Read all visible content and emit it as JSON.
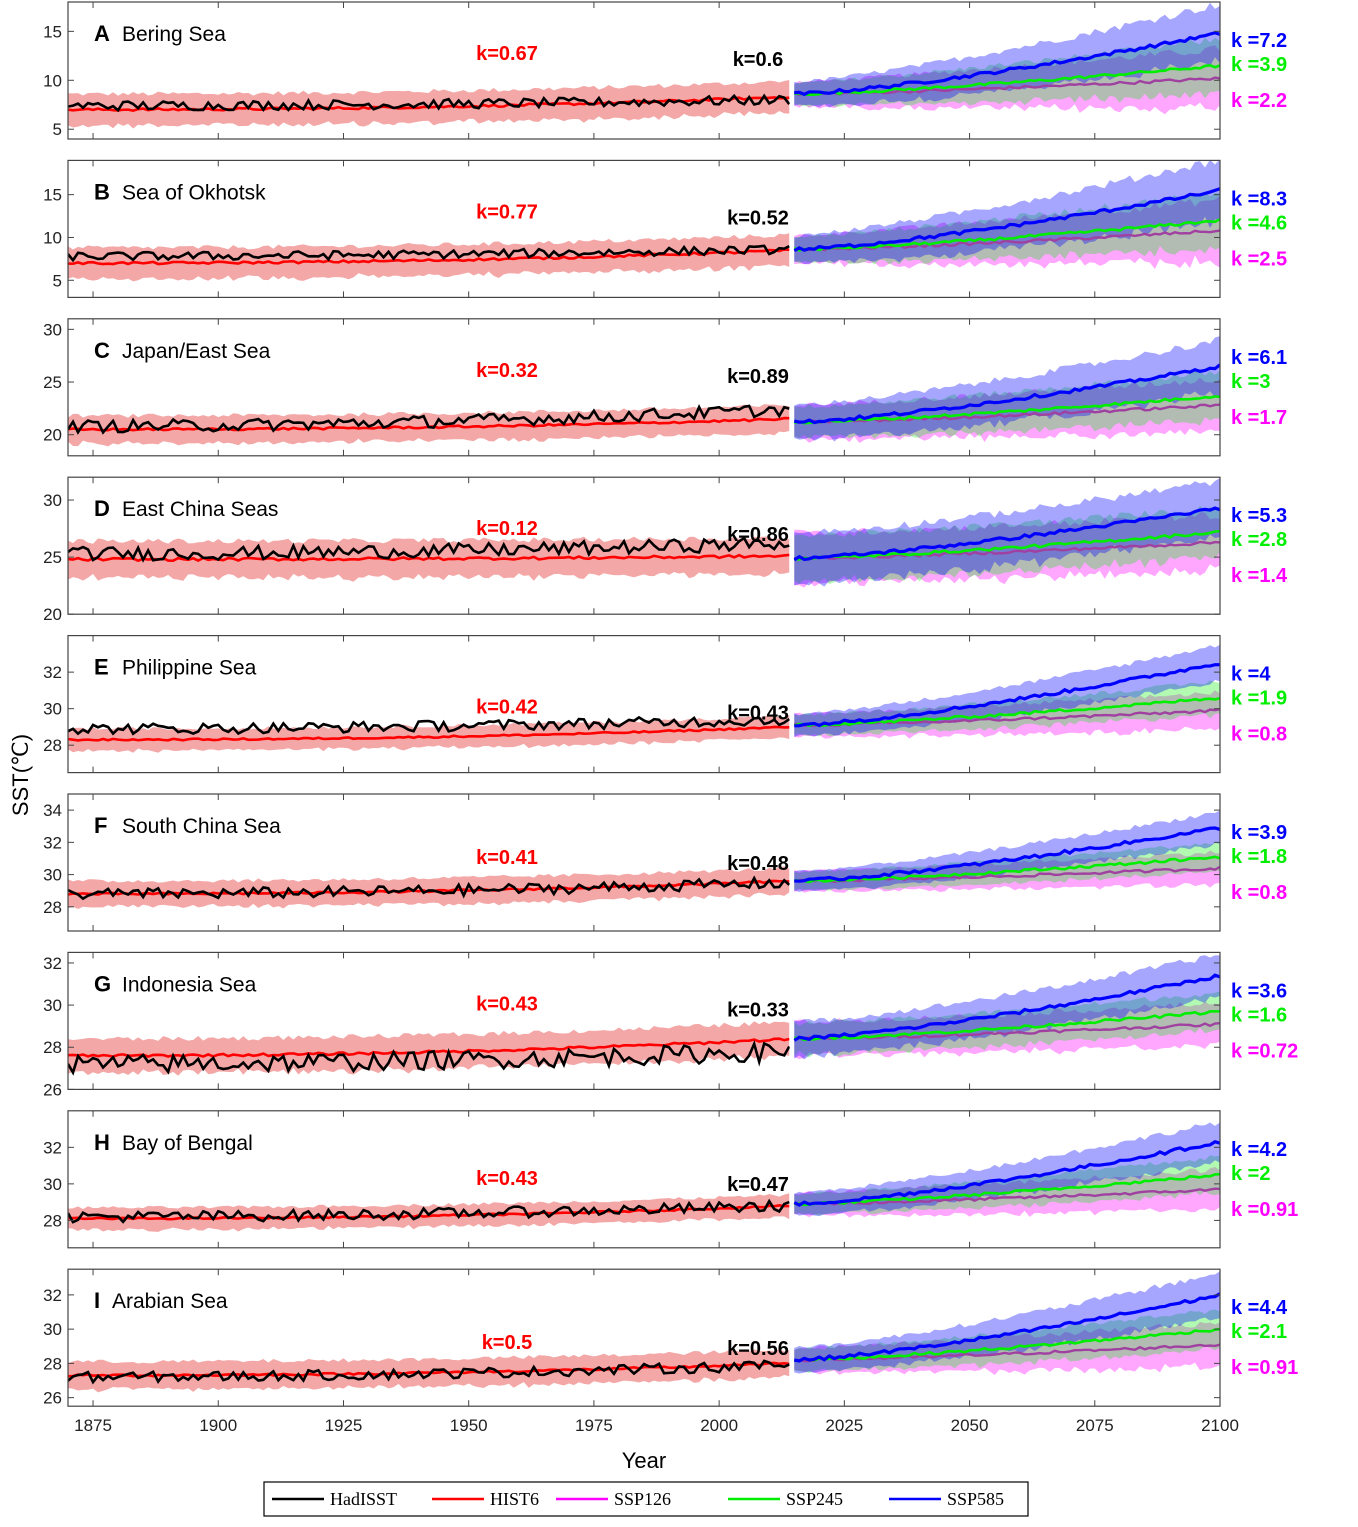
{
  "figure": {
    "ylabel": "SST(℃)",
    "xlabel": "Year",
    "legend": [
      {
        "name": "HadISST",
        "color": "#000000"
      },
      {
        "name": "HIST6",
        "color": "#ff0000"
      },
      {
        "name": "SSP126",
        "color": "#ff00ff"
      },
      {
        "name": "SSP245",
        "color": "#00ee00"
      },
      {
        "name": "SSP585",
        "color": "#0000ff"
      }
    ],
    "colors": {
      "hadisst": "#000000",
      "hist6": "#ff0000",
      "hist6_band": "#f4a7a7",
      "ssp126": "#ff00ff",
      "ssp126_mean": "#a040a0",
      "ssp245": "#00ee00",
      "ssp585": "#0000ff",
      "ssp585_band": "#8f8fee"
    }
  },
  "chart_data": [
    {
      "type": "line",
      "letter": "A",
      "name": "Bering Sea",
      "xlim": [
        1870,
        2100
      ],
      "ylim": [
        4,
        18
      ],
      "yticks": [
        5,
        10,
        15
      ],
      "xticks": [
        1875,
        1900,
        1925,
        1950,
        1975,
        2000,
        2025,
        2050,
        2075,
        2100
      ],
      "k_hist": "k=0.67",
      "k_obs": "k=0.6",
      "k_ssp585": "k =7.2",
      "k_ssp245": "k =3.9",
      "k_ssp126": "k =2.2",
      "hist_start": 7.0,
      "hist_end": 8.3,
      "hist_spread": 1.6,
      "obs_start": 7.4,
      "obs_end": 8.0,
      "obs_noise": 0.5,
      "ssp_start": 8.6,
      "ssp585_end": 14.8,
      "ssp245_end": 11.5,
      "ssp126_end": 10.2,
      "ssp_spread_start": 1.2,
      "ssp_spread_end": 3.0
    },
    {
      "type": "line",
      "letter": "B",
      "name": "Sea of Okhotsk",
      "xlim": [
        1870,
        2100
      ],
      "ylim": [
        3,
        19
      ],
      "yticks": [
        5,
        10,
        15
      ],
      "xticks": [
        1875,
        1900,
        1925,
        1950,
        1975,
        2000,
        2025,
        2050,
        2075,
        2100
      ],
      "k_hist": "k=0.77",
      "k_obs": "k=0.52",
      "k_ssp585": "k =8.3",
      "k_ssp245": "k =4.6",
      "k_ssp126": "k =2.5",
      "hist_start": 7.0,
      "hist_end": 8.5,
      "hist_spread": 1.8,
      "obs_start": 7.8,
      "obs_end": 8.6,
      "obs_noise": 0.5,
      "ssp_start": 8.6,
      "ssp585_end": 15.5,
      "ssp245_end": 12.0,
      "ssp126_end": 10.8,
      "ssp_spread_start": 1.6,
      "ssp_spread_end": 3.6
    },
    {
      "type": "line",
      "letter": "C",
      "name": "Japan/East Sea",
      "xlim": [
        1870,
        2100
      ],
      "ylim": [
        18,
        31
      ],
      "yticks": [
        20,
        25,
        30
      ],
      "xticks": [
        1875,
        1900,
        1925,
        1950,
        1975,
        2000,
        2025,
        2050,
        2075,
        2100
      ],
      "k_hist": "k=0.32",
      "k_obs": "k=0.89",
      "k_ssp585": "k =6.1",
      "k_ssp245": "k =3",
      "k_ssp126": "k =1.7",
      "hist_start": 20.5,
      "hist_end": 21.5,
      "hist_spread": 1.3,
      "obs_start": 20.8,
      "obs_end": 22.4,
      "obs_noise": 0.6,
      "ssp_start": 21.2,
      "ssp585_end": 26.5,
      "ssp245_end": 23.7,
      "ssp126_end": 22.8,
      "ssp_spread_start": 1.6,
      "ssp_spread_end": 2.5
    },
    {
      "type": "line",
      "letter": "D",
      "name": "East China Seas",
      "xlim": [
        1870,
        2100
      ],
      "ylim": [
        20,
        32
      ],
      "yticks": [
        20,
        25,
        30
      ],
      "xticks": [
        1875,
        1900,
        1925,
        1950,
        1975,
        2000,
        2025,
        2050,
        2075,
        2100
      ],
      "k_hist": "k=0.12",
      "k_obs": "k=0.86",
      "k_ssp585": "k =5.3",
      "k_ssp245": "k =2.8",
      "k_ssp126": "k =1.4",
      "hist_start": 24.8,
      "hist_end": 25.1,
      "hist_spread": 1.6,
      "obs_start": 25.3,
      "obs_end": 26.2,
      "obs_noise": 0.6,
      "ssp_start": 24.9,
      "ssp585_end": 29.3,
      "ssp245_end": 27.2,
      "ssp126_end": 26.3,
      "ssp_spread_start": 2.2,
      "ssp_spread_end": 2.4
    },
    {
      "type": "line",
      "letter": "E",
      "name": "Philippine Sea",
      "xlim": [
        1870,
        2100
      ],
      "ylim": [
        26.5,
        34
      ],
      "yticks": [
        28,
        30,
        32
      ],
      "xticks": [
        1875,
        1900,
        1925,
        1950,
        1975,
        2000,
        2025,
        2050,
        2075,
        2100
      ],
      "k_hist": "k=0.42",
      "k_obs": "k=0.43",
      "k_ssp585": "k =4",
      "k_ssp245": "k =1.9",
      "k_ssp126": "k =0.8",
      "hist_start": 28.3,
      "hist_end": 29.0,
      "hist_spread": 0.6,
      "obs_start": 28.9,
      "obs_end": 29.4,
      "obs_noise": 0.3,
      "ssp_start": 29.1,
      "ssp585_end": 32.5,
      "ssp245_end": 30.6,
      "ssp126_end": 29.9,
      "ssp_spread_start": 0.6,
      "ssp_spread_end": 1.0
    },
    {
      "type": "line",
      "letter": "F",
      "name": "South China Sea",
      "xlim": [
        1870,
        2100
      ],
      "ylim": [
        26.5,
        35
      ],
      "yticks": [
        28,
        30,
        32,
        34
      ],
      "xticks": [
        1875,
        1900,
        1925,
        1950,
        1975,
        2000,
        2025,
        2050,
        2075,
        2100
      ],
      "k_hist": "k=0.41",
      "k_obs": "k=0.48",
      "k_ssp585": "k =3.9",
      "k_ssp245": "k =1.8",
      "k_ssp126": "k =0.8",
      "hist_start": 28.8,
      "hist_end": 29.6,
      "hist_spread": 0.8,
      "obs_start": 28.8,
      "obs_end": 29.5,
      "obs_noise": 0.35,
      "ssp_start": 29.6,
      "ssp585_end": 32.9,
      "ssp245_end": 31.1,
      "ssp126_end": 30.4,
      "ssp_spread_start": 0.6,
      "ssp_spread_end": 1.0
    },
    {
      "type": "line",
      "letter": "G",
      "name": "Indonesia Sea",
      "xlim": [
        1870,
        2100
      ],
      "ylim": [
        26,
        32.5
      ],
      "yticks": [
        26,
        28,
        30,
        32
      ],
      "xticks": [
        1875,
        1900,
        1925,
        1950,
        1975,
        2000,
        2025,
        2050,
        2075,
        2100
      ],
      "k_hist": "k=0.43",
      "k_obs": "k=0.33",
      "k_ssp585": "k =3.6",
      "k_ssp245": "k =1.6",
      "k_ssp126": "k =0.72",
      "hist_start": 27.6,
      "hist_end": 28.4,
      "hist_spread": 0.8,
      "obs_start": 27.2,
      "obs_end": 27.8,
      "obs_noise": 0.45,
      "ssp_start": 28.4,
      "ssp585_end": 31.4,
      "ssp245_end": 29.7,
      "ssp126_end": 29.1,
      "ssp_spread_start": 0.8,
      "ssp_spread_end": 1.0
    },
    {
      "type": "line",
      "letter": "H",
      "name": "Bay of Bengal",
      "xlim": [
        1870,
        2100
      ],
      "ylim": [
        26.5,
        34
      ],
      "yticks": [
        28,
        30,
        32
      ],
      "xticks": [
        1875,
        1900,
        1925,
        1950,
        1975,
        2000,
        2025,
        2050,
        2075,
        2100
      ],
      "k_hist": "k=0.43",
      "k_obs": "k=0.47",
      "k_ssp585": "k =4.2",
      "k_ssp245": "k =2",
      "k_ssp126": "k =0.91",
      "hist_start": 28.1,
      "hist_end": 28.8,
      "hist_spread": 0.6,
      "obs_start": 28.2,
      "obs_end": 28.8,
      "obs_noise": 0.3,
      "ssp_start": 28.9,
      "ssp585_end": 32.3,
      "ssp245_end": 30.5,
      "ssp126_end": 29.7,
      "ssp_spread_start": 0.6,
      "ssp_spread_end": 1.1
    },
    {
      "type": "line",
      "letter": "I",
      "name": "Arabian Sea",
      "xlim": [
        1870,
        2100
      ],
      "ylim": [
        25.5,
        33.5
      ],
      "yticks": [
        26,
        28,
        30,
        32
      ],
      "xticks": [
        1875,
        1900,
        1925,
        1950,
        1975,
        2000,
        2025,
        2050,
        2075,
        2100
      ],
      "k_hist": "k=0.5",
      "k_obs": "k=0.56",
      "k_ssp585": "k =4.4",
      "k_ssp245": "k =2.1",
      "k_ssp126": "k =0.91",
      "hist_start": 27.3,
      "hist_end": 28.0,
      "hist_spread": 0.8,
      "obs_start": 27.2,
      "obs_end": 27.9,
      "obs_noise": 0.3,
      "ssp_start": 28.2,
      "ssp585_end": 32.0,
      "ssp245_end": 30.0,
      "ssp126_end": 29.1,
      "ssp_spread_start": 0.7,
      "ssp_spread_end": 1.3
    }
  ]
}
